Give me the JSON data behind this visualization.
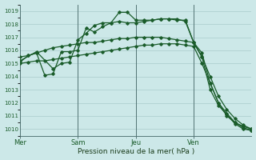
{
  "background_color": "#cce8e8",
  "grid_color": "#aacccc",
  "line_color": "#1a5c2a",
  "xlabel": "Pression niveau de la mer( hPa )",
  "ylim": [
    1009.5,
    1019.5
  ],
  "yticks": [
    1010,
    1011,
    1012,
    1013,
    1014,
    1015,
    1016,
    1017,
    1018,
    1019
  ],
  "day_labels": [
    "Mer",
    "Sam",
    "Jeu",
    "Ven"
  ],
  "day_positions": [
    0,
    7,
    14,
    21
  ],
  "xlim": [
    0,
    28
  ],
  "series": [
    {
      "x": [
        0,
        1,
        2,
        3,
        4,
        5,
        6,
        7,
        8,
        9,
        10,
        11,
        12,
        13,
        14,
        15,
        16,
        17,
        18,
        19,
        20,
        21,
        22,
        23,
        24,
        25,
        26,
        27,
        28
      ],
      "y": [
        1015.0,
        1015.1,
        1015.2,
        1015.2,
        1015.3,
        1015.4,
        1015.5,
        1015.6,
        1015.7,
        1015.8,
        1015.9,
        1016.0,
        1016.1,
        1016.2,
        1016.3,
        1016.4,
        1016.4,
        1016.5,
        1016.5,
        1016.5,
        1016.4,
        1016.3,
        1015.0,
        1013.5,
        1012.0,
        1011.0,
        1010.5,
        1010.2,
        1010.0
      ],
      "marker": "D",
      "markersize": 1.8,
      "linewidth": 0.9
    },
    {
      "x": [
        0,
        1,
        2,
        3,
        4,
        5,
        6,
        7,
        8,
        9,
        10,
        11,
        12,
        13,
        14,
        15,
        16,
        17,
        18,
        19,
        20,
        21,
        22,
        23,
        24,
        25,
        26,
        27,
        28
      ],
      "y": [
        1015.5,
        1015.6,
        1015.8,
        1016.0,
        1016.2,
        1016.3,
        1016.4,
        1016.5,
        1016.6,
        1016.6,
        1016.7,
        1016.8,
        1016.9,
        1016.9,
        1017.0,
        1017.0,
        1017.0,
        1017.0,
        1016.9,
        1016.8,
        1016.7,
        1016.6,
        1015.5,
        1014.0,
        1012.5,
        1011.5,
        1010.8,
        1010.3,
        1010.0
      ],
      "marker": "D",
      "markersize": 1.8,
      "linewidth": 0.9
    },
    {
      "x": [
        0,
        1,
        2,
        3,
        4,
        5,
        6,
        7,
        8,
        9,
        10,
        11,
        12,
        13,
        14,
        15,
        16,
        17,
        18,
        19,
        20,
        21,
        22,
        23,
        24,
        25,
        26,
        27,
        28
      ],
      "y": [
        1015.1,
        1015.6,
        1015.8,
        1014.1,
        1014.2,
        1015.9,
        1015.9,
        1016.0,
        1017.7,
        1017.4,
        1017.8,
        1018.1,
        1018.2,
        1018.1,
        1018.1,
        1018.2,
        1018.3,
        1018.4,
        1018.4,
        1018.3,
        1018.3,
        1016.6,
        1015.8,
        1013.5,
        1012.0,
        1011.2,
        1010.5,
        1010.1,
        1009.9
      ],
      "marker": "D",
      "markersize": 1.8,
      "linewidth": 0.9
    },
    {
      "x": [
        0,
        2,
        4,
        5,
        6,
        7,
        8,
        9,
        10,
        11,
        12,
        13,
        14,
        15,
        16,
        17,
        18,
        19,
        20,
        21,
        22,
        23,
        24,
        25,
        26,
        27,
        28
      ],
      "y": [
        1015.2,
        1015.9,
        1014.6,
        1015.0,
        1015.1,
        1016.8,
        1017.3,
        1017.9,
        1018.1,
        1018.1,
        1018.9,
        1018.9,
        1018.3,
        1018.3,
        1018.3,
        1018.4,
        1018.4,
        1018.4,
        1018.2,
        1016.6,
        1015.5,
        1013.0,
        1011.8,
        1011.1,
        1010.4,
        1010.0,
        1009.9
      ],
      "marker": "D",
      "markersize": 1.8,
      "linewidth": 0.9
    }
  ]
}
